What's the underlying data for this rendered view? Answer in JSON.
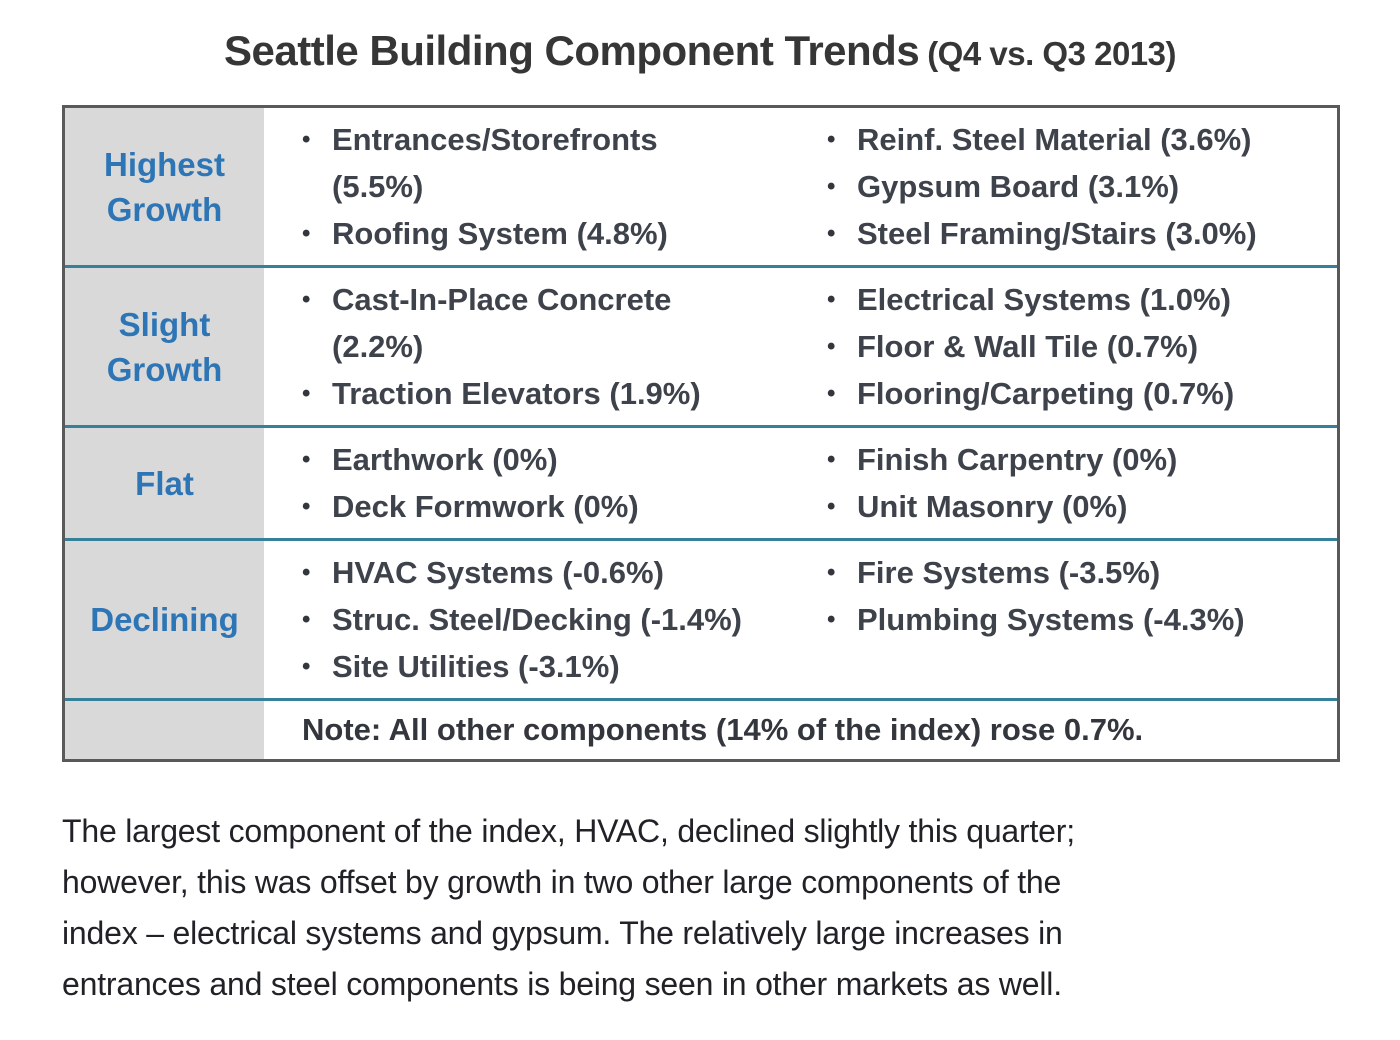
{
  "title": {
    "main": "Seattle Building Component Trends",
    "suffix": "(Q4 vs. Q3 2013)"
  },
  "table": {
    "bullet_glyph": "•",
    "rows": [
      {
        "label": "Highest Growth",
        "col1": [
          "Entrances/Storefronts\n(5.5%)",
          "Roofing System (4.8%)"
        ],
        "col2": [
          "Reinf. Steel Material (3.6%)",
          "Gypsum Board (3.1%)",
          "Steel Framing/Stairs (3.0%)"
        ]
      },
      {
        "label": "Slight Growth",
        "col1": [
          "Cast-In-Place Concrete\n(2.2%)",
          "Traction Elevators (1.9%)"
        ],
        "col2": [
          "Electrical Systems (1.0%)",
          "Floor & Wall Tile (0.7%)",
          "Flooring/Carpeting (0.7%)"
        ]
      },
      {
        "label": "Flat",
        "col1": [
          "Earthwork (0%)",
          "Deck Formwork (0%)"
        ],
        "col2": [
          "Finish Carpentry (0%)",
          "Unit Masonry (0%)"
        ]
      },
      {
        "label": "Declining",
        "col1": [
          "HVAC Systems (-0.6%)",
          "Struc. Steel/Decking (-1.4%)",
          "Site Utilities (-3.1%)"
        ],
        "col2": [
          "Fire Systems (-3.5%)",
          "Plumbing Systems (-4.3%)"
        ]
      }
    ],
    "note": "Note:  All other components (14% of the index) rose 0.7%."
  },
  "paragraph": "The largest component of the index, HVAC, declined slightly this quarter;\nhowever, this was offset by growth in two other large components of the\nindex – electrical systems and gypsum.  The relatively large increases in\nentrances and steel components is being seen in other markets as well.",
  "colors": {
    "label_blue": "#2E75B6",
    "separator_teal": "#35809A",
    "label_bg_gray": "#D9D9D9",
    "outer_border_gray": "#595959",
    "table_text_dark": "#3E424B",
    "paragraph_dark": "#202227"
  }
}
